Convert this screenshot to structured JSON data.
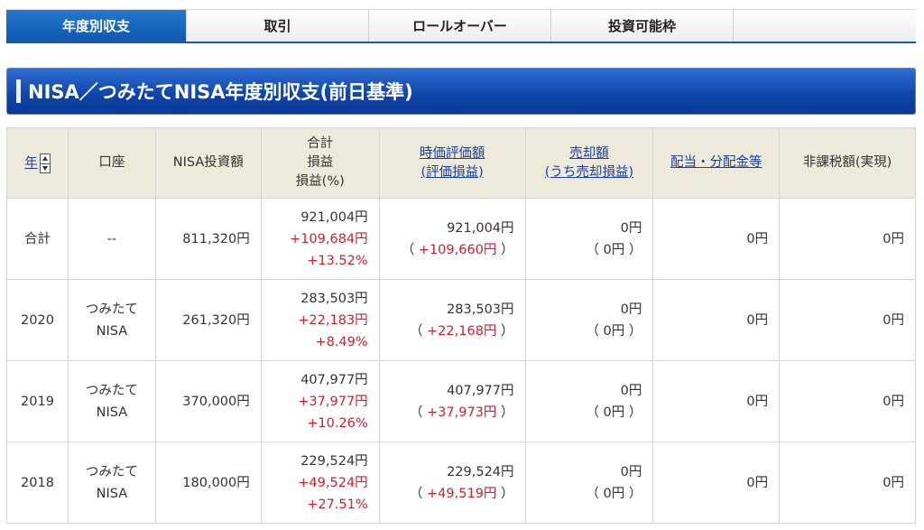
{
  "tabs": [
    {
      "label": "年度別収支",
      "active": true
    },
    {
      "label": "取引"
    },
    {
      "label": "ロールオーバー"
    },
    {
      "label": "投資可能枠"
    }
  ],
  "title": "NISA／つみたてNISA年度別収支(前日基準)",
  "headers": {
    "year": "年",
    "account": "口座",
    "investment": "NISA投資額",
    "total_1": "合計",
    "total_2": "損益",
    "total_3": "損益(%)",
    "market_1": "時価評価額",
    "market_2": "(評価損益)",
    "sale_1": "売却額",
    "sale_2": "(うち売却損益)",
    "dividend": "配当・分配金等",
    "taxfree": "非課税額(実現)"
  },
  "colors": {
    "accent": "#0e58b0",
    "loss_gain": "#d0202a",
    "header_bg": "#eeeadb"
  },
  "rows": [
    {
      "year": "合計",
      "account_1": "--",
      "account_2": "",
      "investment": "811,320円",
      "total": "921,004円",
      "pl": "+109,684円",
      "pl_pct": "+13.52%",
      "market": "921,004円",
      "market_pl": "+109,660円",
      "sale": "0円",
      "sale_pl": "0円",
      "dividend": "0円",
      "taxfree": "0円"
    },
    {
      "year": "2020",
      "account_1": "つみたて",
      "account_2": "NISA",
      "investment": "261,320円",
      "total": "283,503円",
      "pl": "+22,183円",
      "pl_pct": "+8.49%",
      "market": "283,503円",
      "market_pl": "+22,168円",
      "sale": "0円",
      "sale_pl": "0円",
      "dividend": "0円",
      "taxfree": "0円"
    },
    {
      "year": "2019",
      "account_1": "つみたて",
      "account_2": "NISA",
      "investment": "370,000円",
      "total": "407,977円",
      "pl": "+37,977円",
      "pl_pct": "+10.26%",
      "market": "407,977円",
      "market_pl": "+37,973円",
      "sale": "0円",
      "sale_pl": "0円",
      "dividend": "0円",
      "taxfree": "0円"
    },
    {
      "year": "2018",
      "account_1": "つみたて",
      "account_2": "NISA",
      "investment": "180,000円",
      "total": "229,524円",
      "pl": "+49,524円",
      "pl_pct": "+27.51%",
      "market": "229,524円",
      "market_pl": "+49,519円",
      "sale": "0円",
      "sale_pl": "0円",
      "dividend": "0円",
      "taxfree": "0円"
    }
  ]
}
